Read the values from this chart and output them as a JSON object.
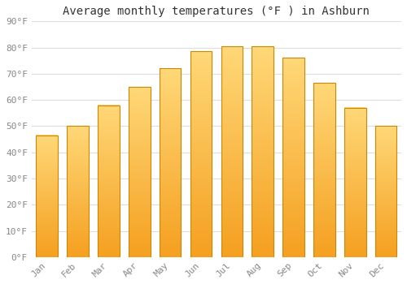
{
  "title": "Average monthly temperatures (°F ) in Ashburn",
  "months": [
    "Jan",
    "Feb",
    "Mar",
    "Apr",
    "May",
    "Jun",
    "Jul",
    "Aug",
    "Sep",
    "Oct",
    "Nov",
    "Dec"
  ],
  "values": [
    46.5,
    50,
    58,
    65,
    72,
    78.5,
    80.5,
    80.5,
    76,
    66.5,
    57,
    50
  ],
  "bar_color_top": "#FFD060",
  "bar_color_bottom": "#F5A020",
  "bar_edge_color": "#CC8800",
  "ylim": [
    0,
    90
  ],
  "yticks": [
    0,
    10,
    20,
    30,
    40,
    50,
    60,
    70,
    80,
    90
  ],
  "ytick_labels": [
    "0°F",
    "10°F",
    "20°F",
    "30°F",
    "40°F",
    "50°F",
    "60°F",
    "70°F",
    "80°F",
    "90°F"
  ],
  "background_color": "#FFFFFF",
  "grid_color": "#DDDDDD",
  "title_fontsize": 10,
  "tick_fontsize": 8,
  "font_family": "monospace",
  "bar_width": 0.7
}
